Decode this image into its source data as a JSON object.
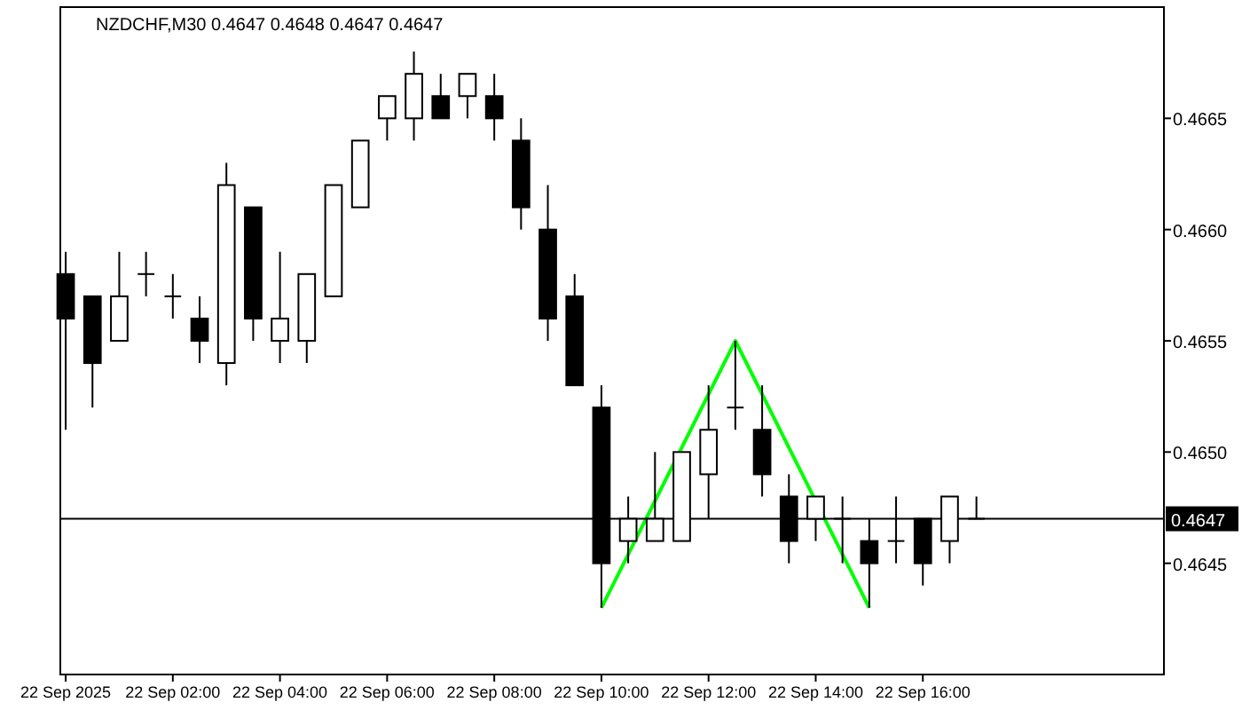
{
  "chart_data": {
    "type": "candlestick",
    "title": "NZDCHF,M30  0.4647 0.4648 0.4647 0.4647",
    "x": [
      "2025-09-22T00:00",
      "2025-09-22T00:30",
      "2025-09-22T01:00",
      "2025-09-22T01:30",
      "2025-09-22T02:00",
      "2025-09-22T02:30",
      "2025-09-22T03:00",
      "2025-09-22T03:30",
      "2025-09-22T04:00",
      "2025-09-22T04:30",
      "2025-09-22T05:00",
      "2025-09-22T05:30",
      "2025-09-22T06:00",
      "2025-09-22T06:30",
      "2025-09-22T07:00",
      "2025-09-22T07:30",
      "2025-09-22T08:00",
      "2025-09-22T08:30",
      "2025-09-22T09:00",
      "2025-09-22T09:30",
      "2025-09-22T10:00",
      "2025-09-22T10:30",
      "2025-09-22T11:00",
      "2025-09-22T11:30",
      "2025-09-22T12:00",
      "2025-09-22T12:30",
      "2025-09-22T13:00",
      "2025-09-22T13:30",
      "2025-09-22T14:00",
      "2025-09-22T14:30",
      "2025-09-22T15:00",
      "2025-09-22T15:30",
      "2025-09-22T16:00",
      "2025-09-22T16:30",
      "2025-09-22T17:00"
    ],
    "ohlc": [
      [
        0.4658,
        0.4659,
        0.4651,
        0.4656
      ],
      [
        0.4657,
        0.4657,
        0.4652,
        0.4654
      ],
      [
        0.4655,
        0.4659,
        0.4655,
        0.4657
      ],
      [
        0.4658,
        0.4659,
        0.4657,
        0.4658
      ],
      [
        0.4657,
        0.4658,
        0.4656,
        0.4657
      ],
      [
        0.4656,
        0.4657,
        0.4654,
        0.4655
      ],
      [
        0.4654,
        0.4663,
        0.4653,
        0.4662
      ],
      [
        0.4661,
        0.4661,
        0.4655,
        0.4656
      ],
      [
        0.4655,
        0.4659,
        0.4654,
        0.4656
      ],
      [
        0.4655,
        0.4658,
        0.4654,
        0.4658
      ],
      [
        0.4657,
        0.4662,
        0.4657,
        0.4662
      ],
      [
        0.4661,
        0.4664,
        0.4661,
        0.4664
      ],
      [
        0.4665,
        0.4666,
        0.4664,
        0.4666
      ],
      [
        0.4665,
        0.4668,
        0.4664,
        0.4667
      ],
      [
        0.4666,
        0.4667,
        0.4665,
        0.4665
      ],
      [
        0.4666,
        0.4667,
        0.4665,
        0.4667
      ],
      [
        0.4666,
        0.4667,
        0.4664,
        0.4665
      ],
      [
        0.4664,
        0.4665,
        0.466,
        0.4661
      ],
      [
        0.466,
        0.4662,
        0.4655,
        0.4656
      ],
      [
        0.4657,
        0.4658,
        0.4653,
        0.4653
      ],
      [
        0.4652,
        0.4653,
        0.4643,
        0.4645
      ],
      [
        0.4646,
        0.4648,
        0.4645,
        0.4647
      ],
      [
        0.4646,
        0.465,
        0.4646,
        0.4647
      ],
      [
        0.4646,
        0.465,
        0.4646,
        0.465
      ],
      [
        0.4649,
        0.4653,
        0.4647,
        0.4651
      ],
      [
        0.4652,
        0.4655,
        0.4651,
        0.4652
      ],
      [
        0.4651,
        0.4653,
        0.4648,
        0.4649
      ],
      [
        0.4648,
        0.4649,
        0.4645,
        0.4646
      ],
      [
        0.4647,
        0.4648,
        0.4646,
        0.4648
      ],
      [
        0.4647,
        0.4648,
        0.4645,
        0.4647
      ],
      [
        0.4646,
        0.4647,
        0.4643,
        0.4645
      ],
      [
        0.4646,
        0.4648,
        0.4645,
        0.4646
      ],
      [
        0.4647,
        0.4647,
        0.4644,
        0.4645
      ],
      [
        0.4646,
        0.4648,
        0.4645,
        0.4648
      ],
      [
        0.4647,
        0.4648,
        0.4647,
        0.4647
      ]
    ],
    "series": [
      {
        "type": "line",
        "color": "#00ff00",
        "x": [
          "2025-09-22T10:00",
          "2025-09-22T12:30",
          "2025-09-22T15:00"
        ],
        "values": [
          0.4643,
          0.4655,
          0.4643
        ]
      }
    ],
    "ref_lines": [
      {
        "axis": "y",
        "value": 0.4647,
        "label": "0.4647",
        "color": "#000000"
      }
    ],
    "xlim": [
      "2025-09-21T23:54",
      "2025-09-22T20:30"
    ],
    "xticks": [
      {
        "value": "2025-09-22T00:00",
        "label": "22 Sep 2025"
      },
      {
        "value": "2025-09-22T02:00",
        "label": "22 Sep 02:00"
      },
      {
        "value": "2025-09-22T04:00",
        "label": "22 Sep 04:00"
      },
      {
        "value": "2025-09-22T06:00",
        "label": "22 Sep 06:00"
      },
      {
        "value": "2025-09-22T08:00",
        "label": "22 Sep 08:00"
      },
      {
        "value": "2025-09-22T10:00",
        "label": "22 Sep 10:00"
      },
      {
        "value": "2025-09-22T12:00",
        "label": "22 Sep 12:00"
      },
      {
        "value": "2025-09-22T14:00",
        "label": "22 Sep 14:00"
      },
      {
        "value": "2025-09-22T16:00",
        "label": "22 Sep 16:00"
      }
    ],
    "ylim": [
      0.464,
      0.467
    ],
    "yticks": [
      {
        "value": 0.4645,
        "label": "0.4645"
      },
      {
        "value": 0.465,
        "label": "0.4650"
      },
      {
        "value": 0.4655,
        "label": "0.4655"
      },
      {
        "value": 0.466,
        "label": "0.4660"
      },
      {
        "value": 0.4665,
        "label": "0.4665"
      }
    ]
  }
}
